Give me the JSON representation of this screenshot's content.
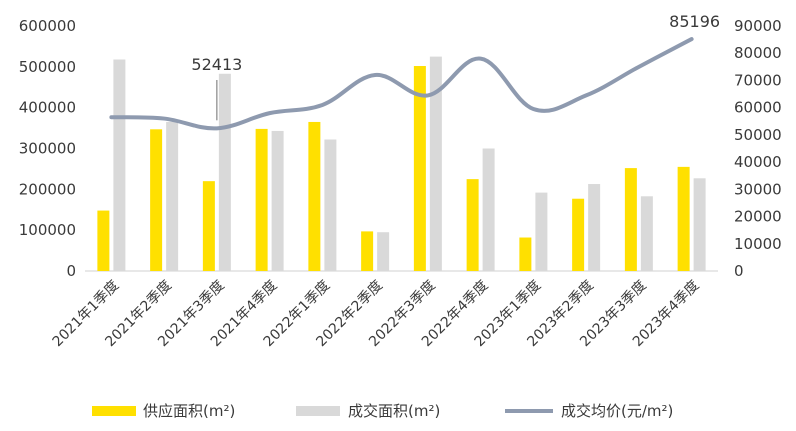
{
  "chart_data": {
    "type": "bar",
    "categories": [
      "2021年1季度",
      "2021年2季度",
      "2021年3季度",
      "2021年4季度",
      "2022年1季度",
      "2022年2季度",
      "2022年3季度",
      "2022年4季度",
      "2023年1季度",
      "2023年2季度",
      "2023年3季度",
      "2023年4季度"
    ],
    "series": [
      {
        "name": "供应面积(m²)",
        "type": "bar",
        "axis": "left",
        "color": "#FFE000",
        "values": [
          148000,
          347000,
          220000,
          348000,
          365000,
          97000,
          502000,
          225000,
          82000,
          177000,
          252000,
          255000
        ]
      },
      {
        "name": "成交面积(m²)",
        "type": "bar",
        "axis": "left",
        "color": "#D9D9D9",
        "values": [
          518000,
          365000,
          483000,
          343000,
          322000,
          95000,
          525000,
          300000,
          192000,
          213000,
          183000,
          227000
        ]
      },
      {
        "name": "成交均价(元/m²)",
        "type": "line",
        "axis": "right",
        "color": "#8E9AAF",
        "values": [
          56500,
          56000,
          52413,
          58000,
          61000,
          72000,
          64500,
          78000,
          59500,
          64500,
          75000,
          85196
        ]
      }
    ],
    "y_left": {
      "ticks": [
        "0",
        "100000",
        "200000",
        "300000",
        "400000",
        "500000",
        "600000"
      ],
      "ylim": [
        0,
        600000
      ]
    },
    "y_right": {
      "ticks": [
        "0",
        "10000",
        "20000",
        "30000",
        "40000",
        "50000",
        "60000",
        "70000",
        "80000",
        "90000"
      ],
      "ylim": [
        0,
        90000
      ]
    },
    "annotations": [
      {
        "text": "52413",
        "series_index": 2,
        "category_index": 2
      },
      {
        "text": "85196",
        "series_index": 2,
        "category_index": 11
      }
    ],
    "grid": false,
    "legend": {
      "position": "bottom"
    }
  }
}
